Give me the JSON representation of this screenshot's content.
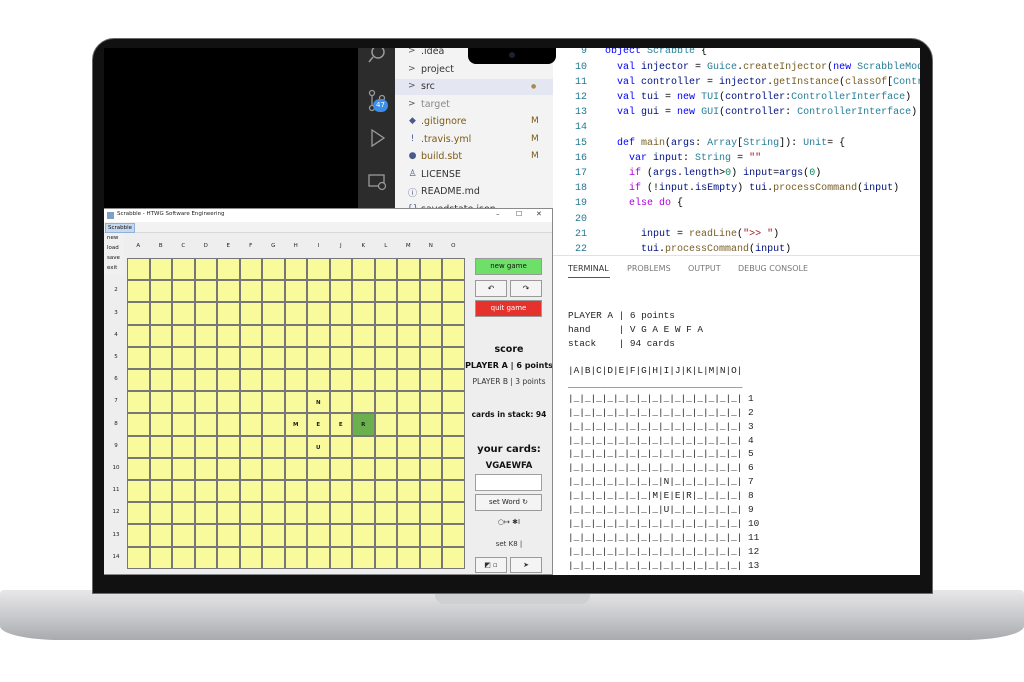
{
  "swing": {
    "title": "Scrabble - HTWG Software Engineering",
    "controls": [
      "–",
      "☐",
      "✕"
    ],
    "menu": "Scrabble",
    "menu_items": [
      "new",
      "load",
      "save",
      "exit"
    ],
    "columns": [
      "A",
      "B",
      "C",
      "D",
      "E",
      "F",
      "G",
      "H",
      "I",
      "J",
      "K",
      "L",
      "M",
      "N",
      "O"
    ],
    "rows": [
      null,
      "2",
      "3",
      "4",
      "5",
      "6",
      "7",
      "8",
      "9",
      "10",
      "11",
      "12",
      "13",
      "14"
    ],
    "grid": [
      [
        null,
        null,
        null,
        null,
        null,
        null,
        null,
        null,
        null,
        null,
        null,
        null,
        null,
        null,
        null
      ],
      [
        null,
        null,
        null,
        null,
        null,
        null,
        null,
        null,
        null,
        null,
        null,
        null,
        null,
        null,
        null
      ],
      [
        null,
        null,
        null,
        null,
        null,
        null,
        null,
        null,
        null,
        null,
        null,
        null,
        null,
        null,
        null
      ],
      [
        null,
        null,
        null,
        null,
        null,
        null,
        null,
        null,
        null,
        null,
        null,
        null,
        null,
        null,
        null
      ],
      [
        null,
        null,
        null,
        null,
        null,
        null,
        null,
        null,
        null,
        null,
        null,
        null,
        null,
        null,
        null
      ],
      [
        null,
        null,
        null,
        null,
        null,
        null,
        null,
        null,
        null,
        null,
        null,
        null,
        null,
        null,
        null
      ],
      [
        null,
        null,
        null,
        null,
        null,
        null,
        null,
        null,
        "N",
        null,
        null,
        null,
        null,
        null,
        null
      ],
      [
        null,
        null,
        null,
        null,
        null,
        null,
        null,
        "M",
        "E",
        "E",
        "R",
        null,
        null,
        null,
        null
      ],
      [
        null,
        null,
        null,
        null,
        null,
        null,
        null,
        null,
        "U",
        null,
        null,
        null,
        null,
        null,
        null
      ],
      [
        null,
        null,
        null,
        null,
        null,
        null,
        null,
        null,
        null,
        null,
        null,
        null,
        null,
        null,
        null
      ],
      [
        null,
        null,
        null,
        null,
        null,
        null,
        null,
        null,
        null,
        null,
        null,
        null,
        null,
        null,
        null
      ],
      [
        null,
        null,
        null,
        null,
        null,
        null,
        null,
        null,
        null,
        null,
        null,
        null,
        null,
        null,
        null
      ],
      [
        null,
        null,
        null,
        null,
        null,
        null,
        null,
        null,
        null,
        null,
        null,
        null,
        null,
        null,
        null
      ],
      [
        null,
        null,
        null,
        null,
        null,
        null,
        null,
        null,
        null,
        null,
        null,
        null,
        null,
        null,
        null
      ]
    ],
    "cell_color": "#f8fa9c",
    "highlight": {
      "row": 7,
      "col": 10,
      "color": "#6ab04c"
    },
    "panel": {
      "new_game": "new game",
      "undo": "↶",
      "redo": "↷",
      "quit_game": "quit game",
      "score": "score",
      "player_a": "PLAYER A | 6 points",
      "player_b": "PLAYER B | 3 points",
      "stack": "cards in stack: 94",
      "your_cards": "your cards:",
      "hand": "VGAEWFA",
      "set_word": "set Word ↻",
      "direction": "○↦ ✱I",
      "set_cell": "set K8 |",
      "button_left": "◩ ▫",
      "button_right": "➤"
    }
  },
  "activity_badge": "47",
  "explorer": [
    {
      "chevron": ">",
      "label": ".idea"
    },
    {
      "chevron": ">",
      "label": "project"
    },
    {
      "chevron": ">",
      "label": "src",
      "status": "●"
    },
    {
      "chevron": ">",
      "label": "target"
    },
    {
      "icon": "◆",
      "label": ".gitignore",
      "status": "M"
    },
    {
      "icon": "!",
      "label": ".travis.yml",
      "status": "M"
    },
    {
      "icon": "●",
      "label": "build.sbt",
      "status": "M"
    },
    {
      "icon": "♙",
      "label": "LICENSE"
    },
    {
      "icon": "ⓘ",
      "label": "README.md"
    },
    {
      "icon": "{}",
      "label": "savedstate.json"
    }
  ],
  "code": [
    {
      "number": 9,
      "segments": [
        {
          "text": "object ",
          "color": "#0000ff"
        },
        {
          "text": "Scrabble ",
          "color": "#267f99"
        },
        {
          "text": "{",
          "color": "#000000"
        }
      ]
    },
    {
      "number": 10,
      "segments": [
        {
          "text": "  val ",
          "color": "#0000ff"
        },
        {
          "text": "injector",
          "color": "#001080"
        },
        {
          "text": " = ",
          "color": "#000000"
        },
        {
          "text": "Guice",
          "color": "#267f99"
        },
        {
          "text": ".",
          "color": "#000000"
        },
        {
          "text": "createInjector",
          "color": "#795e26"
        },
        {
          "text": "(",
          "color": "#000000"
        },
        {
          "text": "new ",
          "color": "#0000ff"
        },
        {
          "text": "ScrabbleModu",
          "color": "#267f99"
        }
      ]
    },
    {
      "number": 11,
      "segments": [
        {
          "text": "  val ",
          "color": "#0000ff"
        },
        {
          "text": "controller",
          "color": "#001080"
        },
        {
          "text": " = ",
          "color": "#000000"
        },
        {
          "text": "injector",
          "color": "#001080"
        },
        {
          "text": ".",
          "color": "#000000"
        },
        {
          "text": "getInstance",
          "color": "#795e26"
        },
        {
          "text": "(",
          "color": "#000000"
        },
        {
          "text": "classOf",
          "color": "#795e26"
        },
        {
          "text": "[",
          "color": "#000000"
        },
        {
          "text": "Contr",
          "color": "#267f99"
        }
      ]
    },
    {
      "number": 12,
      "segments": [
        {
          "text": "  val ",
          "color": "#0000ff"
        },
        {
          "text": "tui",
          "color": "#001080"
        },
        {
          "text": " = ",
          "color": "#000000"
        },
        {
          "text": "new ",
          "color": "#0000ff"
        },
        {
          "text": "TUI",
          "color": "#267f99"
        },
        {
          "text": "(",
          "color": "#000000"
        },
        {
          "text": "controller",
          "color": "#001080"
        },
        {
          "text": ":",
          "color": "#000000"
        },
        {
          "text": "ControllerInterface",
          "color": "#267f99"
        },
        {
          "text": ")",
          "color": "#000000"
        }
      ]
    },
    {
      "number": 13,
      "segments": [
        {
          "text": "  val ",
          "color": "#0000ff"
        },
        {
          "text": "gui",
          "color": "#001080"
        },
        {
          "text": " = ",
          "color": "#000000"
        },
        {
          "text": "new ",
          "color": "#0000ff"
        },
        {
          "text": "GUI",
          "color": "#267f99"
        },
        {
          "text": "(",
          "color": "#000000"
        },
        {
          "text": "controller",
          "color": "#001080"
        },
        {
          "text": ": ",
          "color": "#000000"
        },
        {
          "text": "ControllerInterface",
          "color": "#267f99"
        },
        {
          "text": ")",
          "color": "#000000"
        }
      ]
    },
    {
      "number": 14,
      "segments": []
    },
    {
      "number": 15,
      "segments": [
        {
          "text": "  def ",
          "color": "#0000ff"
        },
        {
          "text": "main",
          "color": "#795e26"
        },
        {
          "text": "(",
          "color": "#000000"
        },
        {
          "text": "args",
          "color": "#001080"
        },
        {
          "text": ": ",
          "color": "#000000"
        },
        {
          "text": "Array",
          "color": "#267f99"
        },
        {
          "text": "[",
          "color": "#000000"
        },
        {
          "text": "String",
          "color": "#267f99"
        },
        {
          "text": "]): ",
          "color": "#000000"
        },
        {
          "text": "Unit",
          "color": "#267f99"
        },
        {
          "text": "= {",
          "color": "#000000"
        }
      ]
    },
    {
      "number": 16,
      "segments": [
        {
          "text": "    var ",
          "color": "#0000ff"
        },
        {
          "text": "input",
          "color": "#001080"
        },
        {
          "text": ": ",
          "color": "#000000"
        },
        {
          "text": "String",
          "color": "#267f99"
        },
        {
          "text": " = ",
          "color": "#000000"
        },
        {
          "text": "\"\"",
          "color": "#a31515"
        }
      ]
    },
    {
      "number": 17,
      "segments": [
        {
          "text": "    if ",
          "color": "#af00db"
        },
        {
          "text": "(",
          "color": "#000000"
        },
        {
          "text": "args",
          "color": "#001080"
        },
        {
          "text": ".",
          "color": "#000000"
        },
        {
          "text": "length",
          "color": "#001080"
        },
        {
          "text": ">",
          "color": "#000000"
        },
        {
          "text": "0",
          "color": "#098658"
        },
        {
          "text": ") ",
          "color": "#000000"
        },
        {
          "text": "input",
          "color": "#001080"
        },
        {
          "text": "=",
          "color": "#000000"
        },
        {
          "text": "args",
          "color": "#001080"
        },
        {
          "text": "(",
          "color": "#000000"
        },
        {
          "text": "0",
          "color": "#098658"
        },
        {
          "text": ")",
          "color": "#000000"
        }
      ]
    },
    {
      "number": 18,
      "segments": [
        {
          "text": "    if ",
          "color": "#af00db"
        },
        {
          "text": "(!",
          "color": "#000000"
        },
        {
          "text": "input",
          "color": "#001080"
        },
        {
          "text": ".",
          "color": "#000000"
        },
        {
          "text": "isEmpty",
          "color": "#001080"
        },
        {
          "text": ") ",
          "color": "#000000"
        },
        {
          "text": "tui",
          "color": "#001080"
        },
        {
          "text": ".",
          "color": "#000000"
        },
        {
          "text": "processCommand",
          "color": "#795e26"
        },
        {
          "text": "(",
          "color": "#000000"
        },
        {
          "text": "input",
          "color": "#001080"
        },
        {
          "text": ")",
          "color": "#000000"
        }
      ]
    },
    {
      "number": 19,
      "segments": [
        {
          "text": "    else do ",
          "color": "#af00db"
        },
        {
          "text": "{",
          "color": "#000000"
        }
      ]
    },
    {
      "number": 20,
      "segments": []
    },
    {
      "number": 21,
      "segments": [
        {
          "text": "      input",
          "color": "#001080"
        },
        {
          "text": " = ",
          "color": "#000000"
        },
        {
          "text": "readLine",
          "color": "#795e26"
        },
        {
          "text": "(",
          "color": "#000000"
        },
        {
          "text": "\">> \"",
          "color": "#a31515"
        },
        {
          "text": ")",
          "color": "#000000"
        }
      ]
    },
    {
      "number": 22,
      "segments": [
        {
          "text": "      tui",
          "color": "#001080"
        },
        {
          "text": ".",
          "color": "#000000"
        },
        {
          "text": "processCommand",
          "color": "#795e26"
        },
        {
          "text": "(",
          "color": "#000000"
        },
        {
          "text": "input",
          "color": "#001080"
        },
        {
          "text": ")",
          "color": "#000000"
        }
      ]
    }
  ],
  "terminal": {
    "tabs": [
      "TERMINAL",
      "PROBLEMS",
      "OUTPUT",
      "DEBUG CONSOLE"
    ],
    "status": [
      "PLAYER A | 6 points",
      "hand     | V G A E W F A",
      "stack    | 94 cards"
    ],
    "board": [
      "|A|B|C|D|E|F|G|H|I|J|K|L|M|N|O|",
      "_______________________________",
      "|_|_|_|_|_|_|_|_|_|_|_|_|_|_|_| 1",
      "|_|_|_|_|_|_|_|_|_|_|_|_|_|_|_| 2",
      "|_|_|_|_|_|_|_|_|_|_|_|_|_|_|_| 3",
      "|_|_|_|_|_|_|_|_|_|_|_|_|_|_|_| 4",
      "|_|_|_|_|_|_|_|_|_|_|_|_|_|_|_| 5",
      "|_|_|_|_|_|_|_|_|_|_|_|_|_|_|_| 6",
      "|_|_|_|_|_|_|_|_|N|_|_|_|_|_|_| 7",
      "|_|_|_|_|_|_|_|M|E|E|R|_|_|_|_| 8",
      "|_|_|_|_|_|_|_|_|U|_|_|_|_|_|_| 9",
      "|_|_|_|_|_|_|_|_|_|_|_|_|_|_|_| 10",
      "|_|_|_|_|_|_|_|_|_|_|_|_|_|_|_| 11",
      "|_|_|_|_|_|_|_|_|_|_|_|_|_|_|_| 12",
      "|_|_|_|_|_|_|_|_|_|_|_|_|_|_|_| 13"
    ]
  }
}
